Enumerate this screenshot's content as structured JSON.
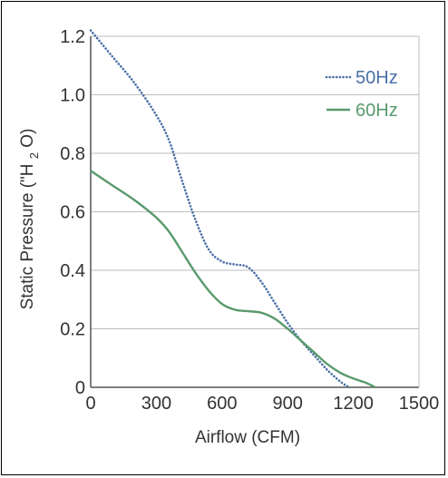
{
  "chart_data": {
    "type": "line",
    "title": "",
    "xlabel": "Airflow (CFM)",
    "ylabel_parts": {
      "prefix": "Static Pressure (\"H",
      "subscript": "2",
      "suffix": "O)"
    },
    "xlim": [
      0,
      1500
    ],
    "ylim": [
      0,
      1.2
    ],
    "x_ticks": [
      {
        "value": 0,
        "label": "0"
      },
      {
        "value": 300,
        "label": "300"
      },
      {
        "value": 600,
        "label": "600"
      },
      {
        "value": 900,
        "label": "900"
      },
      {
        "value": 1200,
        "label": "1200"
      },
      {
        "value": 1500,
        "label": "1500"
      }
    ],
    "y_ticks": [
      {
        "value": 0,
        "label": "0"
      },
      {
        "value": 0.2,
        "label": "0.2"
      },
      {
        "value": 0.4,
        "label": "0.4"
      },
      {
        "value": 0.6,
        "label": "0.6"
      },
      {
        "value": 0.8,
        "label": "0.8"
      },
      {
        "value": 1.0,
        "label": "1.0"
      },
      {
        "value": 1.2,
        "label": "1.2"
      }
    ],
    "grid": "horizontal",
    "legend_position": "top-right",
    "series": [
      {
        "name": "50Hz",
        "style": "dotted",
        "color": "#4a6fa5",
        "points": [
          [
            0,
            1.22
          ],
          [
            100,
            1.13
          ],
          [
            200,
            1.04
          ],
          [
            300,
            0.93
          ],
          [
            360,
            0.84
          ],
          [
            420,
            0.7
          ],
          [
            480,
            0.57
          ],
          [
            540,
            0.47
          ],
          [
            600,
            0.43
          ],
          [
            660,
            0.42
          ],
          [
            720,
            0.41
          ],
          [
            780,
            0.36
          ],
          [
            840,
            0.29
          ],
          [
            900,
            0.22
          ],
          [
            960,
            0.16
          ],
          [
            1020,
            0.11
          ],
          [
            1080,
            0.06
          ],
          [
            1140,
            0.02
          ],
          [
            1180,
            0.0
          ]
        ]
      },
      {
        "name": "60Hz",
        "style": "solid",
        "color": "#5a9a6e",
        "points": [
          [
            0,
            0.74
          ],
          [
            100,
            0.69
          ],
          [
            200,
            0.64
          ],
          [
            300,
            0.58
          ],
          [
            360,
            0.53
          ],
          [
            420,
            0.46
          ],
          [
            480,
            0.39
          ],
          [
            540,
            0.33
          ],
          [
            600,
            0.285
          ],
          [
            660,
            0.265
          ],
          [
            720,
            0.26
          ],
          [
            780,
            0.255
          ],
          [
            840,
            0.235
          ],
          [
            900,
            0.2
          ],
          [
            960,
            0.16
          ],
          [
            1020,
            0.12
          ],
          [
            1080,
            0.08
          ],
          [
            1140,
            0.05
          ],
          [
            1200,
            0.03
          ],
          [
            1260,
            0.015
          ],
          [
            1300,
            0.0
          ]
        ]
      }
    ]
  }
}
